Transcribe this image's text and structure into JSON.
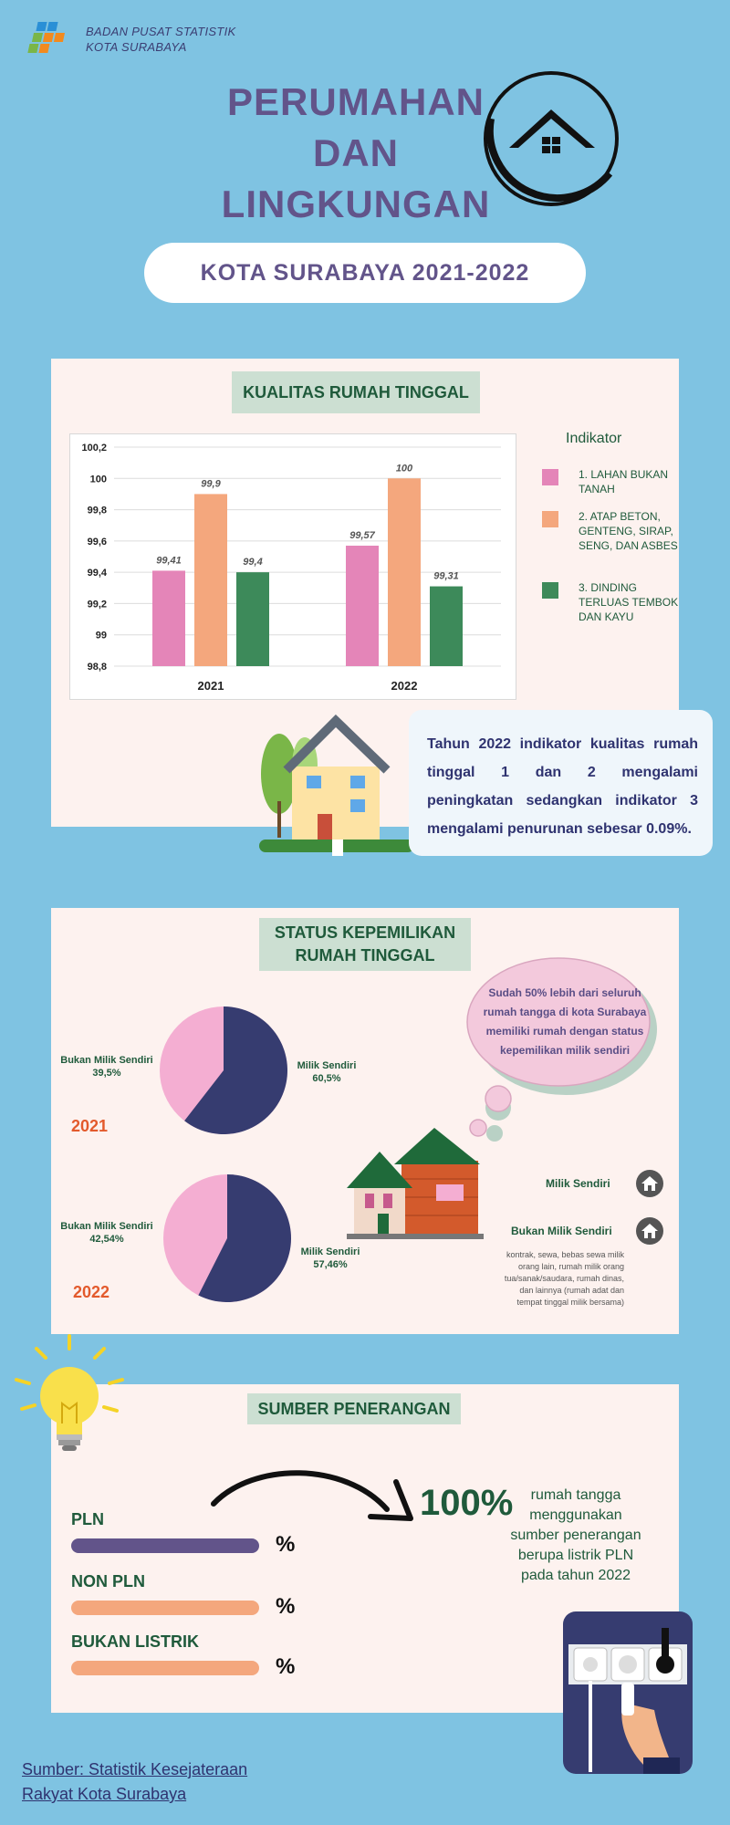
{
  "header": {
    "org_line1": "BADAN PUSAT STATISTIK",
    "org_line2": "KOTA SURABAYA",
    "title_line1": "PERUMAHAN",
    "title_line2": "DAN",
    "title_line3": "LINGKUNGAN",
    "subtitle": "KOTA SURABAYA 2021-2022"
  },
  "quality": {
    "section_title": "KUALITAS RUMAH TINGGAL",
    "legend_title": "Indikator",
    "legend": [
      {
        "label": "1. LAHAN BUKAN TANAH",
        "color": "#e485b8"
      },
      {
        "label": "2. ATAP BETON, GENTENG, SIRAP, SENG, DAN ASBES",
        "color": "#f4a77d"
      },
      {
        "label": "3. DINDING TERLUAS TEMBOK DAN KAYU",
        "color": "#3d8a5a"
      }
    ],
    "note_lines": [
      "Tahun 2022 indikator kualitas rumah",
      "tinggal 1 dan 2 mengalami",
      "peningkatan sedangkan indikator 3",
      "mengalami penurunan sebesar 0.09%."
    ]
  },
  "chart_data": {
    "type": "bar",
    "categories": [
      "2021",
      "2022"
    ],
    "series": [
      {
        "name": "1. LAHAN BUKAN TANAH",
        "values": [
          99.41,
          99.57
        ],
        "labels": [
          "99,41",
          "99,57"
        ],
        "color": "#e485b8"
      },
      {
        "name": "2. ATAP BETON, GENTENG, SIRAP, SENG, DAN ASBES",
        "values": [
          99.9,
          100
        ],
        "labels": [
          "99,9",
          "100"
        ],
        "color": "#f4a77d"
      },
      {
        "name": "3. DINDING TERLUAS TEMBOK DAN KAYU",
        "values": [
          99.4,
          99.31
        ],
        "labels": [
          "99,4",
          "99,31"
        ],
        "color": "#3d8a5a"
      }
    ],
    "ylim": [
      98.8,
      100.2
    ],
    "yticks": [
      "98,8",
      "99",
      "99,2",
      "99,4",
      "99,6",
      "99,8",
      "100",
      "100,2"
    ],
    "grid": true
  },
  "ownership": {
    "section_title_line1": "STATUS KEPEMILIKAN",
    "section_title_line2": "RUMAH TINGGAL",
    "pies": [
      {
        "year": "2021",
        "own_label": "Milik Sendiri",
        "own_pct": "60,5%",
        "own_value": 60.5,
        "not_own_label": "Bukan Milik Sendiri",
        "not_own_pct": "39,5%"
      },
      {
        "year": "2022",
        "own_label": "Milik Sendiri",
        "own_pct": "57,46%",
        "own_value": 57.46,
        "not_own_label": "Bukan Milik Sendiri",
        "not_own_pct": "42,54%"
      }
    ],
    "own_color": "#363c70",
    "not_own_color": "#f4aed2",
    "cloud_text": "Sudah 50% lebih dari seluruh rumah tangga di kota Surabaya memiliki rumah dengan status kepemilikan milik sendiri",
    "key_own": "Milik Sendiri",
    "key_not_own": "Bukan Milik Sendiri",
    "key_note": "kontrak, sewa, bebas sewa milik orang lain, rumah milik orang tua/sanak/saudara, rumah dinas, dan lainnya (rumah adat dan tempat tinggal milik bersama)"
  },
  "lighting": {
    "section_title": "SUMBER PENERANGAN",
    "bars": [
      {
        "label": "PLN",
        "pct": "%",
        "color": "#62548a"
      },
      {
        "label": "NON PLN",
        "pct": "%",
        "color": "#f4a77d"
      },
      {
        "label": "BUKAN LISTRIK",
        "pct": "%",
        "color": "#f4a77d"
      }
    ],
    "big_value": "100%",
    "description": "rumah tangga menggunakan sumber penerangan berupa listrik PLN pada tahun 2022"
  },
  "footer": {
    "source_line1": "Sumber: Statistik Kesejateraan",
    "source_line2": "Rakyat Kota Surabaya"
  }
}
